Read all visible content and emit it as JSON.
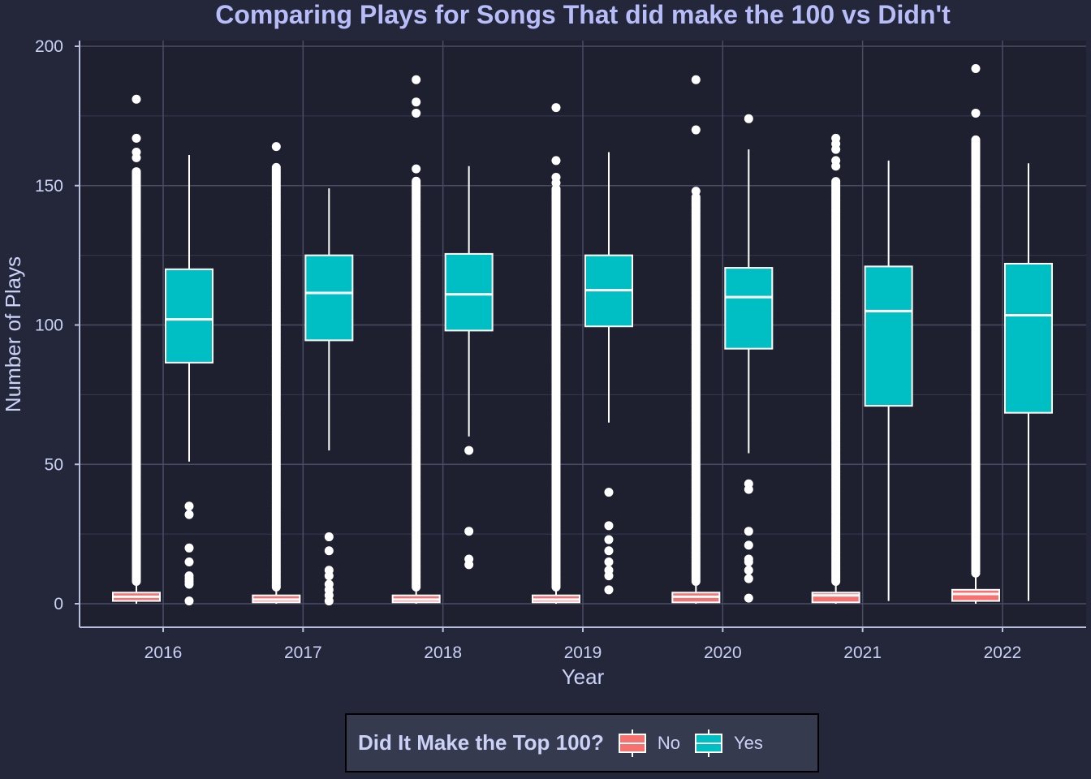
{
  "chart_data": {
    "type": "boxplot",
    "title": "Comparing Plays for Songs That did make the 100 vs Didn't",
    "xlabel": "Year",
    "ylabel": "Number of Plays",
    "ylim": [
      0,
      200
    ],
    "yticks": [
      "0",
      "50",
      "100",
      "150",
      "200"
    ],
    "categories": [
      "2016",
      "2017",
      "2018",
      "2019",
      "2020",
      "2021",
      "2022"
    ],
    "legend": {
      "title": "Did It Make the Top 100?",
      "placement": "bottom",
      "entries": [
        "No",
        "Yes"
      ]
    },
    "series": [
      {
        "name": "No",
        "color": "#f87171",
        "boxes": [
          {
            "whisker_low": 0,
            "q1": 1,
            "median": 2.5,
            "q3": 4,
            "whisker_high": 8,
            "dense_outliers": [
              8,
              155
            ],
            "outliers": [
              160,
              162,
              167,
              181
            ]
          },
          {
            "whisker_low": 0,
            "q1": 0.5,
            "median": 1.5,
            "q3": 3,
            "whisker_high": 6,
            "dense_outliers": [
              6,
              157
            ],
            "outliers": [
              164
            ]
          },
          {
            "whisker_low": 0,
            "q1": 0.5,
            "median": 1.5,
            "q3": 3,
            "whisker_high": 6,
            "dense_outliers": [
              6,
              152
            ],
            "outliers": [
              156,
              176,
              180,
              188
            ]
          },
          {
            "whisker_low": 0,
            "q1": 0.5,
            "median": 1.5,
            "q3": 3,
            "whisker_high": 6,
            "dense_outliers": [
              6,
              149
            ],
            "outliers": [
              151,
              153,
              159,
              178
            ]
          },
          {
            "whisker_low": 0,
            "q1": 0.5,
            "median": 2.5,
            "q3": 4,
            "whisker_high": 8,
            "dense_outliers": [
              8,
              146
            ],
            "outliers": [
              148,
              170,
              188
            ]
          },
          {
            "whisker_low": 0,
            "q1": 0.5,
            "median": 3,
            "q3": 4,
            "whisker_high": 8,
            "dense_outliers": [
              8,
              152
            ],
            "outliers": [
              157,
              159,
              163,
              165,
              167
            ]
          },
          {
            "whisker_low": 0,
            "q1": 1,
            "median": 3.5,
            "q3": 5,
            "whisker_high": 11,
            "dense_outliers": [
              11,
              167
            ],
            "outliers": [
              176,
              192
            ]
          }
        ]
      },
      {
        "name": "Yes",
        "color": "#00bfc4",
        "boxes": [
          {
            "whisker_low": 51,
            "q1": 86.5,
            "median": 102,
            "q3": 120,
            "whisker_high": 161,
            "outliers": [
              1,
              7,
              8,
              9,
              10,
              15,
              20,
              32,
              35
            ]
          },
          {
            "whisker_low": 55,
            "q1": 94.5,
            "median": 111.5,
            "q3": 125,
            "whisker_high": 149,
            "outliers": [
              1,
              3,
              5,
              7,
              10,
              12,
              19,
              24
            ]
          },
          {
            "whisker_low": 60,
            "q1": 98,
            "median": 111,
            "q3": 125.5,
            "whisker_high": 157,
            "outliers": [
              14,
              16,
              26,
              55
            ]
          },
          {
            "whisker_low": 65,
            "q1": 99.5,
            "median": 112.5,
            "q3": 125,
            "whisker_high": 162,
            "outliers": [
              5,
              10,
              12,
              15,
              19,
              23,
              28,
              40
            ]
          },
          {
            "whisker_low": 54,
            "q1": 91.5,
            "median": 110,
            "q3": 120.5,
            "whisker_high": 163,
            "outliers": [
              2,
              9,
              12,
              15,
              16,
              21,
              26,
              41,
              43,
              174
            ]
          },
          {
            "whisker_low": 1,
            "q1": 71,
            "median": 105,
            "q3": 121,
            "whisker_high": 159,
            "outliers": []
          },
          {
            "whisker_low": 1,
            "q1": 68.5,
            "median": 103.5,
            "q3": 122,
            "whisker_high": 158,
            "outliers": []
          }
        ]
      }
    ]
  }
}
